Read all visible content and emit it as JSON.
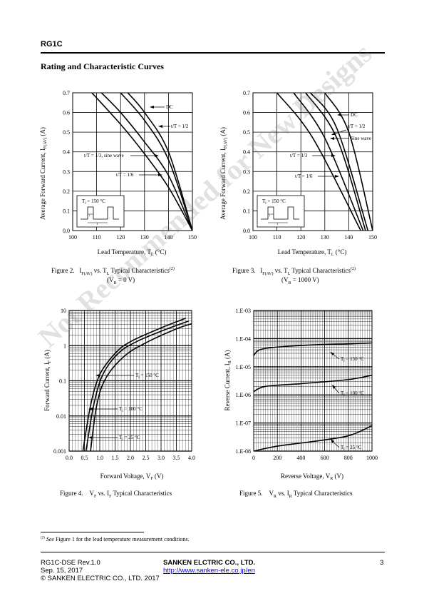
{
  "header": {
    "part": "RG1C"
  },
  "section_title": "Rating and Characteristic Curves",
  "fig2": {
    "title": "Figure 2.",
    "cap_a": "I",
    "cap_a_sub": "F(AV)",
    "cap_b": " vs. T",
    "cap_b_sub": "L",
    "cap_c": " Typical Characteristics",
    "sup": "(2)",
    "cond": "(V",
    "cond_sub": "R",
    "cond_b": " = 0 V)"
  },
  "fig3": {
    "title": "Figure 3.",
    "cap_a": "I",
    "cap_a_sub": "F(AV)",
    "cap_b": " vs. T",
    "cap_b_sub": "L",
    "cap_c": " Typical Characteristics",
    "sup": "(2)",
    "cond": "(V",
    "cond_sub": "R",
    "cond_b": " = 1000 V)"
  },
  "fig4": {
    "title": "Figure 4.",
    "cap": "V",
    "cap_sub": "F",
    "cap_b": " vs. I",
    "cap_b_sub": "F",
    "cap_c": " Typical Characteristics"
  },
  "fig5": {
    "title": "Figure 5.",
    "cap": "V",
    "cap_sub": "R",
    "cap_b": " vs. I",
    "cap_b_sub": "R",
    "cap_c": " Typical Characteristics"
  },
  "footnote": {
    "sup": "(2)",
    "italic": "See",
    "text": " Figure 1 for the lead temperature measurement conditions."
  },
  "footer": {
    "doc": "RG1C-DSE Rev.1.0",
    "date": "Sep. 15, 2017",
    "copyright": "© SANKEN ELECTRIC CO., LTD. 2017",
    "company": "SANKEN ELCTRIC CO., LTD.",
    "url": "http://www.sanken-ele.co.jp/en",
    "page": "3"
  },
  "watermark": "Not Recommended for New Designs",
  "chart_data": [
    {
      "type": "line",
      "id": "fig2",
      "ylabel": "Average Forward Current, IF(AV) (A)",
      "xlabel": "Lead Temperature, TL (°C)",
      "xlim": [
        100,
        150
      ],
      "ylim": [
        0,
        0.7
      ],
      "x_ticks": [
        "100",
        "110",
        "120",
        "130",
        "140",
        "150"
      ],
      "y_ticks": [
        "0.0",
        "0.1",
        "0.2",
        "0.3",
        "0.4",
        "0.5",
        "0.6",
        "0.7"
      ],
      "inset_label": "Tj = 150 °C",
      "series": [
        {
          "name": "DC",
          "points": [
            [
              123,
              0.7
            ],
            [
              130,
              0.6
            ],
            [
              140,
              0.4
            ],
            [
              150,
              0.0
            ]
          ]
        },
        {
          "name": "t/T = 1/2",
          "points": [
            [
              120,
              0.7
            ],
            [
              130,
              0.56
            ],
            [
              140,
              0.36
            ],
            [
              150,
              0.0
            ]
          ]
        },
        {
          "name": "t/T = 1/3, sine wave",
          "points": [
            [
              112,
              0.7
            ],
            [
              120,
              0.6
            ],
            [
              130,
              0.45
            ],
            [
              140,
              0.28
            ],
            [
              150,
              0.0
            ]
          ]
        },
        {
          "name": "t/T = 1/6",
          "points": [
            [
              108,
              0.7
            ],
            [
              120,
              0.54
            ],
            [
              130,
              0.39
            ],
            [
              140,
              0.22
            ],
            [
              150,
              0.0
            ]
          ]
        }
      ]
    },
    {
      "type": "line",
      "id": "fig3",
      "ylabel": "Average Forward Current, IF(AV) (A)",
      "xlabel": "Lead Temperature, TL (°C)",
      "xlim": [
        100,
        150
      ],
      "ylim": [
        0,
        0.7
      ],
      "x_ticks": [
        "100",
        "110",
        "120",
        "130",
        "140",
        "150"
      ],
      "y_ticks": [
        "0.0",
        "0.1",
        "0.2",
        "0.3",
        "0.4",
        "0.5",
        "0.6",
        "0.7"
      ],
      "inset_label": "Tj = 150 °C",
      "series": [
        {
          "name": "DC",
          "points": [
            [
              130,
              0.7
            ],
            [
              140,
              0.5
            ],
            [
              150,
              0.0
            ]
          ]
        },
        {
          "name": "t/T = 1/2",
          "points": [
            [
              124,
              0.7
            ],
            [
              135,
              0.52
            ],
            [
              148,
              0.0
            ]
          ]
        },
        {
          "name": "Sine wave",
          "points": [
            [
              122,
              0.7
            ],
            [
              135,
              0.47
            ],
            [
              147,
              0.0
            ]
          ]
        },
        {
          "name": "t/T = 1/3",
          "points": [
            [
              117,
              0.7
            ],
            [
              130,
              0.47
            ],
            [
              146,
              0.0
            ]
          ]
        },
        {
          "name": "t/T = 1/6",
          "points": [
            [
              110,
              0.7
            ],
            [
              125,
              0.47
            ],
            [
              145,
              0.0
            ]
          ]
        }
      ]
    },
    {
      "type": "line",
      "id": "fig4",
      "ylabel": "Forward Current, IF (A)",
      "xlabel": "Forward Voltage, VF (V)",
      "xlim": [
        0,
        4
      ],
      "ylim": [
        0.001,
        10
      ],
      "yscale": "log",
      "x_ticks": [
        "0.0",
        "0.5",
        "1.0",
        "1.5",
        "2.0",
        "2.5",
        "3.0",
        "3.5",
        "4.0"
      ],
      "y_ticks": [
        "0.001",
        "0.01",
        "0.1",
        "1",
        "10"
      ],
      "series": [
        {
          "name": "Tj = 150 °C",
          "points": [
            [
              0.45,
              0.001
            ],
            [
              0.7,
              0.02
            ],
            [
              1.0,
              0.15
            ],
            [
              1.5,
              0.6
            ],
            [
              2.0,
              1.3
            ],
            [
              3.0,
              3.2
            ],
            [
              3.8,
              6.0
            ]
          ]
        },
        {
          "name": "Tj = 100 °C",
          "points": [
            [
              0.55,
              0.001
            ],
            [
              0.8,
              0.02
            ],
            [
              1.1,
              0.15
            ],
            [
              1.6,
              0.6
            ],
            [
              2.2,
              1.3
            ],
            [
              3.2,
              3.0
            ],
            [
              3.9,
              5.0
            ]
          ]
        },
        {
          "name": "Tj = 25 °C",
          "points": [
            [
              0.7,
              0.001
            ],
            [
              0.9,
              0.02
            ],
            [
              1.2,
              0.12
            ],
            [
              1.8,
              0.5
            ],
            [
              2.5,
              1.2
            ],
            [
              3.5,
              3.0
            ],
            [
              4.0,
              4.2
            ]
          ]
        }
      ]
    },
    {
      "type": "line",
      "id": "fig5",
      "ylabel": "Reverse Current, IR (A)",
      "xlabel": "Reverse Voltage, VR (V)",
      "xlim": [
        0,
        1000
      ],
      "ylim": [
        1e-08,
        0.001
      ],
      "yscale": "log",
      "x_ticks": [
        "0",
        "200",
        "400",
        "600",
        "800",
        "1000"
      ],
      "y_ticks": [
        "1.E-08",
        "1.E-07",
        "1.E-06",
        "1.E-05",
        "1.E-04",
        "1.E-03"
      ],
      "series": [
        {
          "name": "Tj = 150 °C",
          "points": [
            [
              0,
              2.5e-05
            ],
            [
              50,
              4e-05
            ],
            [
              200,
              5e-05
            ],
            [
              500,
              6e-05
            ],
            [
              800,
              6.5e-05
            ],
            [
              1000,
              7e-05
            ]
          ]
        },
        {
          "name": "Tj = 100 °C",
          "points": [
            [
              0,
              1.3e-06
            ],
            [
              100,
              2e-06
            ],
            [
              400,
              2.5e-06
            ],
            [
              800,
              3.5e-06
            ],
            [
              1000,
              5e-06
            ]
          ]
        },
        {
          "name": "Tj = 25 °C",
          "points": [
            [
              0,
              1e-08
            ],
            [
              200,
              1.5e-08
            ],
            [
              500,
              2.2e-08
            ],
            [
              800,
              3.5e-08
            ],
            [
              1000,
              8e-08
            ]
          ]
        }
      ]
    }
  ]
}
